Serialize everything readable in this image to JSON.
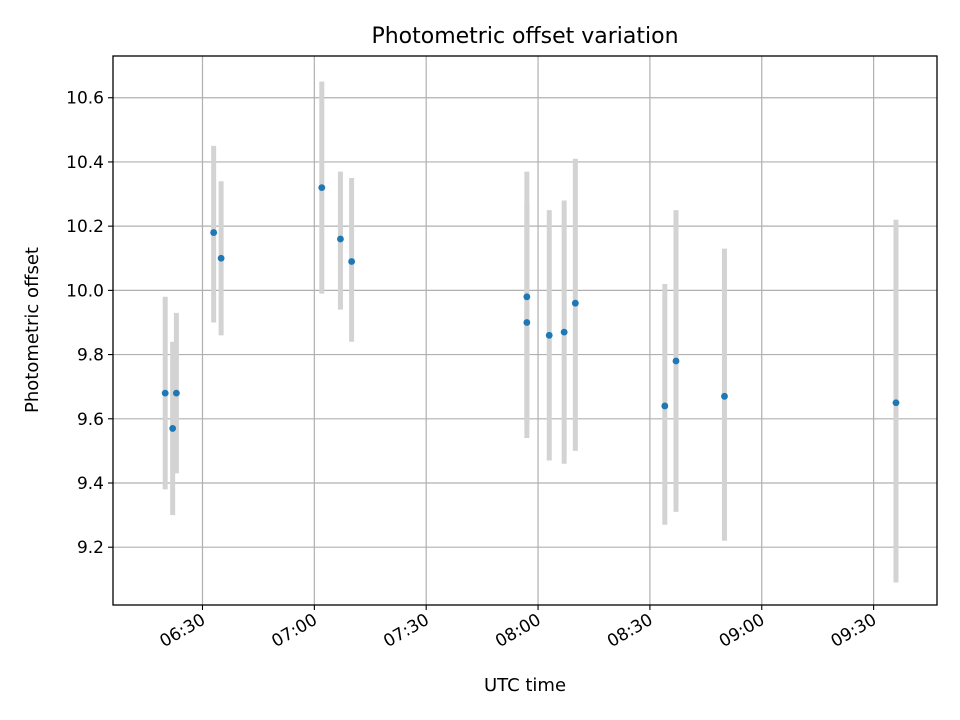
{
  "chart_data": {
    "type": "scatter",
    "title": "Photometric offset variation",
    "xlabel": "UTC time",
    "ylabel": "Photometric offset",
    "x_ticks": [
      "06:30",
      "07:00",
      "07:30",
      "08:00",
      "08:30",
      "09:00",
      "09:30"
    ],
    "y_ticks": [
      "9.2",
      "9.4",
      "9.6",
      "9.8",
      "10.0",
      "10.2",
      "10.4",
      "10.6"
    ],
    "xlim": [
      "06:06",
      "09:47"
    ],
    "ylim": [
      9.02,
      10.73
    ],
    "grid": true,
    "legend": "none",
    "series": [
      {
        "marker_color": "#1f77b4",
        "errorbar_color": "#d3d3d3",
        "points": [
          {
            "x": "06:20",
            "y": 9.68,
            "yerr_low": 9.38,
            "yerr_high": 9.98
          },
          {
            "x": "06:22",
            "y": 9.57,
            "yerr_low": 9.3,
            "yerr_high": 9.84
          },
          {
            "x": "06:23",
            "y": 9.68,
            "yerr_low": 9.43,
            "yerr_high": 9.93
          },
          {
            "x": "06:33",
            "y": 10.18,
            "yerr_low": 9.9,
            "yerr_high": 10.45
          },
          {
            "x": "06:35",
            "y": 10.1,
            "yerr_low": 9.86,
            "yerr_high": 10.34
          },
          {
            "x": "07:02",
            "y": 10.32,
            "yerr_low": 9.99,
            "yerr_high": 10.65
          },
          {
            "x": "07:07",
            "y": 10.16,
            "yerr_low": 9.94,
            "yerr_high": 10.37
          },
          {
            "x": "07:10",
            "y": 10.09,
            "yerr_low": 9.84,
            "yerr_high": 10.35
          },
          {
            "x": "07:57",
            "y": 9.98,
            "yerr_low": 9.58,
            "yerr_high": 10.37
          },
          {
            "x": "07:57",
            "y": 9.9,
            "yerr_low": 9.54,
            "yerr_high": 10.27
          },
          {
            "x": "08:03",
            "y": 9.86,
            "yerr_low": 9.47,
            "yerr_high": 10.25
          },
          {
            "x": "08:07",
            "y": 9.87,
            "yerr_low": 9.46,
            "yerr_high": 10.28
          },
          {
            "x": "08:10",
            "y": 9.96,
            "yerr_low": 9.5,
            "yerr_high": 10.41
          },
          {
            "x": "08:34",
            "y": 9.64,
            "yerr_low": 9.27,
            "yerr_high": 10.02
          },
          {
            "x": "08:37",
            "y": 9.78,
            "yerr_low": 9.31,
            "yerr_high": 10.25
          },
          {
            "x": "08:50",
            "y": 9.67,
            "yerr_low": 9.22,
            "yerr_high": 10.13
          },
          {
            "x": "09:36",
            "y": 9.65,
            "yerr_low": 9.09,
            "yerr_high": 10.22
          }
        ]
      }
    ]
  }
}
